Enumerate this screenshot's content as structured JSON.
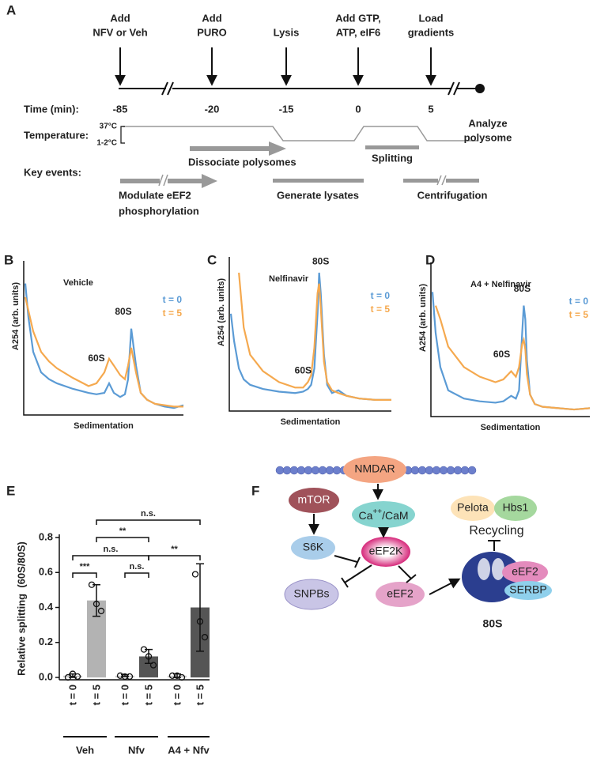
{
  "panel_a": {
    "label": "A",
    "events": [
      {
        "lines": [
          "Add",
          "NFV or Veh"
        ],
        "time": -85
      },
      {
        "lines": [
          "Add",
          "PURO"
        ],
        "time": -20
      },
      {
        "lines": [
          "Lysis"
        ],
        "time": -15
      },
      {
        "lines": [
          "Add GTP,",
          "ATP, eIF6"
        ],
        "time": 0
      },
      {
        "lines": [
          "Load",
          "gradients"
        ],
        "time": 5
      }
    ],
    "end": {
      "lines": [
        "Analyze",
        "polysome"
      ]
    },
    "row_labels": [
      "Time (min):",
      "Temperature:",
      "Key events:"
    ],
    "temperatures": [
      "37°C",
      "1-2°C"
    ],
    "phases": [
      "Dissociate polysomes",
      "Splitting"
    ],
    "key_events": [
      {
        "lines": [
          "Modulate eEF2",
          "phosphorylation"
        ]
      },
      {
        "lines": [
          "Generate lysates"
        ]
      },
      {
        "lines": [
          "Centrifugation"
        ]
      }
    ]
  },
  "chart_data": [
    {
      "type": "line",
      "panel_label": "B",
      "title": "Vehicle",
      "y_label": "A254 (arb. units)",
      "x_label": "Sedimentation",
      "x": [
        0,
        2,
        5,
        10,
        15,
        20,
        30,
        40,
        45,
        50,
        53,
        56,
        60,
        63,
        65,
        67,
        70,
        73,
        77,
        82,
        88,
        94,
        100
      ],
      "xlim": [
        0,
        100
      ],
      "ylim": [
        0,
        100
      ],
      "series": [
        {
          "name": "t = 0",
          "color": "#5b9bd5",
          "values": [
            95,
            70,
            45,
            30,
            25,
            22,
            18,
            15,
            14,
            15,
            22,
            15,
            12,
            14,
            25,
            62,
            35,
            15,
            10,
            7,
            5,
            4,
            6
          ]
        },
        {
          "name": "t = 5",
          "color": "#f5a94f",
          "values": [
            85,
            75,
            60,
            45,
            38,
            33,
            26,
            20,
            22,
            30,
            40,
            35,
            28,
            25,
            35,
            48,
            30,
            15,
            10,
            7,
            6,
            5,
            5
          ]
        }
      ],
      "peak_labels": [
        "60S",
        "80S"
      ]
    },
    {
      "type": "line",
      "panel_label": "C",
      "title": "Nelfinavir",
      "y_label": "A254 (arb. units)",
      "x_label": "Sedimentation",
      "x": [
        0,
        2,
        5,
        8,
        12,
        20,
        30,
        40,
        45,
        48,
        50,
        52,
        54,
        55,
        56,
        58,
        60,
        63,
        67,
        72,
        80,
        90,
        100
      ],
      "xlim": [
        0,
        100
      ],
      "ylim": [
        0,
        100
      ],
      "series": [
        {
          "name": "t = 0",
          "color": "#5b9bd5",
          "values": [
            70,
            50,
            30,
            22,
            18,
            15,
            13,
            12,
            13,
            15,
            18,
            30,
            70,
            100,
            85,
            40,
            18,
            12,
            14,
            10,
            8,
            7,
            7
          ]
        },
        {
          "name": "t = 5",
          "color": "#f5a94f",
          "values": [
            null,
            null,
            100,
            60,
            40,
            28,
            20,
            16,
            16,
            20,
            25,
            45,
            85,
            92,
            75,
            35,
            20,
            14,
            12,
            10,
            8,
            7,
            7
          ]
        }
      ],
      "peak_labels": [
        "60S",
        "80S"
      ]
    },
    {
      "type": "line",
      "panel_label": "D",
      "title": "A4 + Nelfinavir",
      "y_label": "A254 (arb. units)",
      "x_label": "Sedimentation",
      "x": [
        0,
        2,
        5,
        10,
        20,
        30,
        40,
        45,
        50,
        53,
        55,
        57,
        58,
        59,
        60,
        62,
        65,
        70,
        80,
        90,
        100
      ],
      "xlim": [
        0,
        100
      ],
      "ylim": [
        0,
        100
      ],
      "series": [
        {
          "name": "t = 0",
          "color": "#5b9bd5",
          "values": [
            90,
            60,
            35,
            18,
            12,
            10,
            9,
            10,
            14,
            12,
            18,
            60,
            80,
            70,
            40,
            15,
            8,
            6,
            5,
            4,
            5
          ]
        },
        {
          "name": "t = 5",
          "color": "#f5a94f",
          "values": [
            null,
            80,
            70,
            50,
            35,
            28,
            24,
            26,
            32,
            28,
            35,
            52,
            55,
            48,
            30,
            15,
            8,
            6,
            5,
            4,
            5
          ]
        }
      ],
      "peak_labels": [
        "60S",
        "80S"
      ]
    },
    {
      "type": "bar",
      "panel_label": "E",
      "y_label": "Relative splitting  (60S/80S)",
      "categories": [
        "t = 0",
        "t = 5",
        "t = 0",
        "t = 5",
        "t = 0",
        "t = 5"
      ],
      "groups": [
        "Veh",
        "Nfv",
        "A4 + Nfv"
      ],
      "values": [
        0.01,
        0.44,
        0.01,
        0.12,
        0.01,
        0.4
      ],
      "errors": [
        0.01,
        0.09,
        0.005,
        0.04,
        0.01,
        0.25
      ],
      "points": [
        [
          0.0,
          0.02,
          0.005
        ],
        [
          0.53,
          0.42,
          0.38
        ],
        [
          0.01,
          0.005,
          0.005
        ],
        [
          0.16,
          0.12,
          0.07
        ],
        [
          0.01,
          0.01,
          0.0
        ],
        [
          0.59,
          0.32,
          0.23
        ]
      ],
      "colors": [
        "#c8c8c8",
        "#b3b3b3",
        "#c8c8c8",
        "#555555",
        "#c8c8c8",
        "#555555"
      ],
      "ylim": [
        0,
        0.8
      ],
      "yticks": [
        {
          "value": 0,
          "label": "0.0"
        },
        0.2,
        0.4,
        0.6,
        0.8
      ],
      "comparisons": [
        "n.s.",
        "**",
        "n.s.",
        "***",
        "n.s.",
        "**"
      ]
    }
  ],
  "panel_f": {
    "label": "F",
    "nmdar": "NMDAR",
    "mtor": "mTOR",
    "cacam": [
      "Ca",
      "++",
      "/CaM"
    ],
    "s6k": "S6K",
    "eef2k": "eEF2K",
    "snpbs": "SNPBs",
    "eef2": "eEF2",
    "pelota": "Pelota",
    "hbs1": "Hbs1",
    "recycling": "Recycling",
    "ribo_eef2": "eEF2",
    "serbp": "SERBP",
    "ribosome": "80S"
  }
}
